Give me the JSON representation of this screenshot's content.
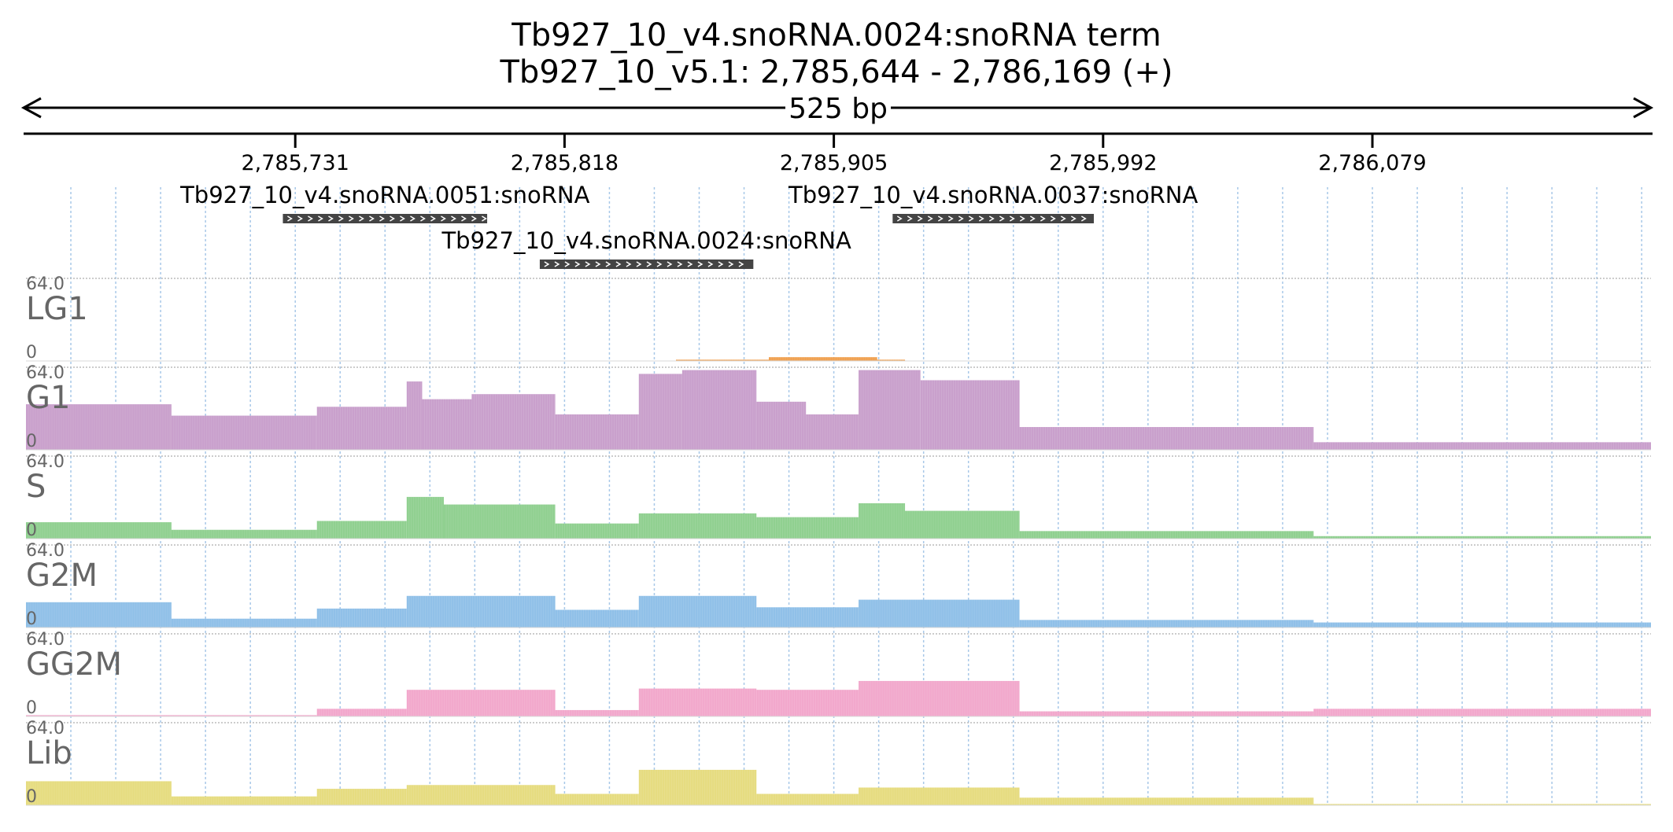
{
  "chart_data": {
    "type": "bar",
    "title": "Tb927_10_v4.snoRNA.0024:snoRNA  term",
    "subtitle": "Tb927_10_v5.1: 2,785,644 - 2,786,169 (+)",
    "span_label": "525 bp",
    "region": {
      "start": 2785644,
      "end": 2786169,
      "strand": "+"
    },
    "xlim": [
      2785644,
      2786169
    ],
    "ticks": [
      {
        "pos": 2785731,
        "label": "2,785,731"
      },
      {
        "pos": 2785818,
        "label": "2,785,818"
      },
      {
        "pos": 2785905,
        "label": "2,785,905"
      },
      {
        "pos": 2785992,
        "label": "2,785,992"
      },
      {
        "pos": 2786079,
        "label": "2,786,079"
      }
    ],
    "grid": true,
    "features": [
      {
        "name": "Tb927_10_v4.snoRNA.0051:snoRNA",
        "start": 2785727,
        "end": 2785793,
        "strand": "+",
        "row": 0
      },
      {
        "name": "Tb927_10_v4.snoRNA.0037:snoRNA",
        "start": 2785924,
        "end": 2785989,
        "strand": "+",
        "row": 0
      },
      {
        "name": "Tb927_10_v4.snoRNA.0024:snoRNA",
        "start": 2785810,
        "end": 2785879,
        "strand": "+",
        "row": 1
      }
    ],
    "tracks": [
      {
        "name": "LG1",
        "color": "#f0a050",
        "ymax_label": "64.0",
        "ymin_label": "0",
        "ylim": [
          0,
          64
        ],
        "segments": [
          [
            2785644,
            2785854,
            0
          ],
          [
            2785854,
            2785884,
            1
          ],
          [
            2785884,
            2785919,
            3
          ],
          [
            2785919,
            2785928,
            1
          ],
          [
            2785928,
            2786169,
            0
          ]
        ]
      },
      {
        "name": "G1",
        "color": "#c9a0cc",
        "ymax_label": "64.0",
        "ymin_label": "0",
        "ylim": [
          0,
          64
        ],
        "segments": [
          [
            2785644,
            2785691,
            36
          ],
          [
            2785691,
            2785738,
            27
          ],
          [
            2785738,
            2785767,
            34
          ],
          [
            2785767,
            2785772,
            54
          ],
          [
            2785772,
            2785788,
            40
          ],
          [
            2785788,
            2785815,
            44
          ],
          [
            2785815,
            2785842,
            28
          ],
          [
            2785842,
            2785856,
            60
          ],
          [
            2785856,
            2785880,
            63
          ],
          [
            2785880,
            2785896,
            38
          ],
          [
            2785896,
            2785913,
            28
          ],
          [
            2785913,
            2785933,
            63
          ],
          [
            2785933,
            2785965,
            55
          ],
          [
            2785965,
            2786060,
            18
          ],
          [
            2786060,
            2786169,
            6
          ]
        ]
      },
      {
        "name": "S",
        "color": "#90d090",
        "ymax_label": "64.0",
        "ymin_label": "0",
        "ylim": [
          0,
          64
        ],
        "segments": [
          [
            2785644,
            2785691,
            13
          ],
          [
            2785691,
            2785738,
            7
          ],
          [
            2785738,
            2785767,
            14
          ],
          [
            2785767,
            2785779,
            33
          ],
          [
            2785779,
            2785815,
            27
          ],
          [
            2785815,
            2785842,
            12
          ],
          [
            2785842,
            2785880,
            20
          ],
          [
            2785880,
            2785913,
            17
          ],
          [
            2785913,
            2785928,
            28
          ],
          [
            2785928,
            2785965,
            22
          ],
          [
            2785965,
            2786060,
            6
          ],
          [
            2786060,
            2786169,
            2
          ]
        ]
      },
      {
        "name": "G2M",
        "color": "#90c0e8",
        "ymax_label": "64.0",
        "ymin_label": "0",
        "ylim": [
          0,
          64
        ],
        "segments": [
          [
            2785644,
            2785691,
            20
          ],
          [
            2785691,
            2785738,
            7
          ],
          [
            2785738,
            2785767,
            15
          ],
          [
            2785767,
            2785815,
            25
          ],
          [
            2785815,
            2785842,
            14
          ],
          [
            2785842,
            2785880,
            25
          ],
          [
            2785880,
            2785913,
            16
          ],
          [
            2785913,
            2785965,
            22
          ],
          [
            2785965,
            2786060,
            6
          ],
          [
            2786060,
            2786169,
            4
          ]
        ]
      },
      {
        "name": "GG2M",
        "color": "#f2a8cc",
        "ymax_label": "64.0",
        "ymin_label": "0",
        "ylim": [
          0,
          64
        ],
        "segments": [
          [
            2785644,
            2785738,
            1
          ],
          [
            2785738,
            2785767,
            6
          ],
          [
            2785767,
            2785815,
            21
          ],
          [
            2785815,
            2785842,
            5
          ],
          [
            2785842,
            2785880,
            22
          ],
          [
            2785880,
            2785913,
            21
          ],
          [
            2785913,
            2785965,
            28
          ],
          [
            2785965,
            2786060,
            4
          ],
          [
            2786060,
            2786169,
            6
          ]
        ]
      },
      {
        "name": "Lib",
        "color": "#e6dc80",
        "ymax_label": "64.0",
        "ymin_label": "0",
        "ylim": [
          0,
          64
        ],
        "segments": [
          [
            2785644,
            2785691,
            19
          ],
          [
            2785691,
            2785738,
            7
          ],
          [
            2785738,
            2785767,
            13
          ],
          [
            2785767,
            2785815,
            16
          ],
          [
            2785815,
            2785842,
            9
          ],
          [
            2785842,
            2785880,
            28
          ],
          [
            2785880,
            2785913,
            9
          ],
          [
            2785913,
            2785965,
            14
          ],
          [
            2785965,
            2786060,
            6
          ],
          [
            2786060,
            2786169,
            1
          ]
        ]
      }
    ]
  }
}
